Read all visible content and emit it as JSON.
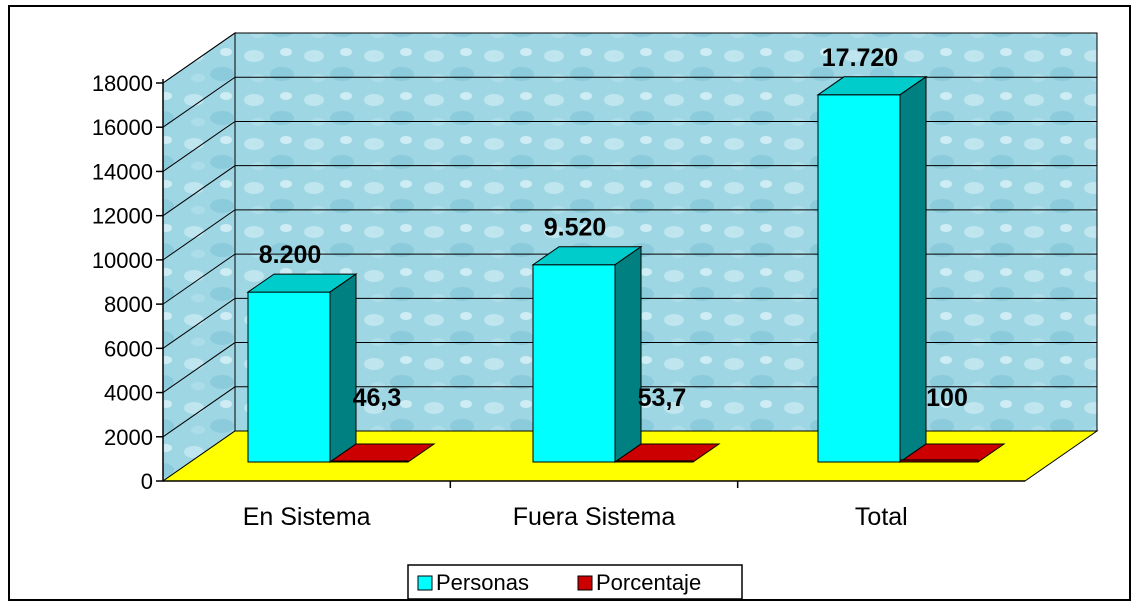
{
  "chart_data": {
    "type": "bar",
    "categories": [
      "En Sistema",
      "Fuera Sistema",
      "Total"
    ],
    "series": [
      {
        "name": "Personas",
        "values": [
          8200,
          9520,
          17720
        ],
        "labels": [
          "8.200",
          "9.520",
          "17.720"
        ],
        "color": "#00FFFF"
      },
      {
        "name": "Porcentaje",
        "values": [
          46.3,
          53.7,
          100
        ],
        "labels": [
          "46,3",
          "53,7",
          "100"
        ],
        "color": "#CC0000"
      }
    ],
    "yticks": [
      "0",
      "2000",
      "4000",
      "6000",
      "8000",
      "10000",
      "12000",
      "14000",
      "16000",
      "18000"
    ],
    "ylim": [
      0,
      18000
    ],
    "grid": true,
    "floor_color": "#FFFF00",
    "legend_position": "bottom"
  }
}
